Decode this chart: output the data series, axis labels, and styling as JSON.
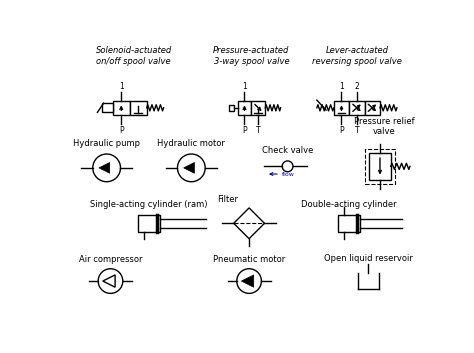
{
  "background_color": "#ffffff",
  "line_color": "#000000",
  "text_color": "#000000",
  "flow_color": "#0000cc",
  "fig_width": 4.74,
  "fig_height": 3.53,
  "dpi": 100,
  "labels": {
    "solenoid_valve": "Solenoid-actuated\non/off spool valve",
    "pressure_valve": "Pressure-actuated\n3-way spool valve",
    "lever_valve": "Lever-actuated\nreversing spool valve",
    "hyd_pump": "Hydraulic pump",
    "hyd_motor": "Hydraulic motor",
    "check_valve": "Check valve",
    "relief_valve": "Pressure relief\nvalve",
    "single_cyl": "Single-acting cylinder (ram)",
    "filter": "Filter",
    "double_cyl": "Double-acting cylinder",
    "air_comp": "Air compressor",
    "pneu_motor": "Pneumatic motor",
    "reservoir": "Open liquid reservoir"
  }
}
